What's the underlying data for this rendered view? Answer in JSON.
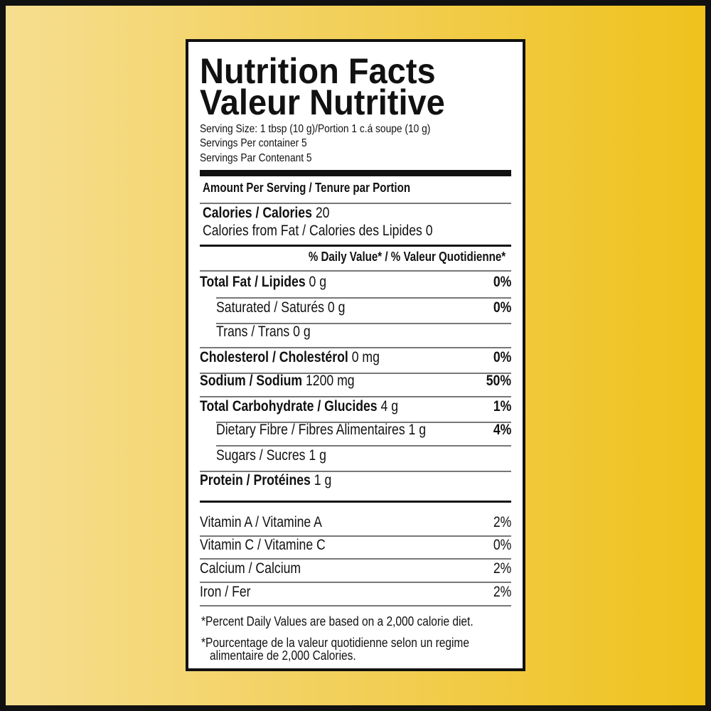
{
  "background_colors": [
    "#f6de90",
    "#efc21c"
  ],
  "title_en": "Nutrition Facts",
  "title_fr": "Valeur Nutritive",
  "serving_size": "Serving Size: 1 tbsp (10 g)/Portion 1 c.á soupe (10 g)",
  "servings_en": "Servings Per container 5",
  "servings_fr": "Servings Par Contenant 5",
  "amount_header": "Amount Per Serving / Tenure par Portion",
  "calories": {
    "label": "Calories / Calories",
    "value": "20"
  },
  "calories_fat": "Calories from Fat / Calories des Lipides 0",
  "dv_header": "% Daily Value* / % Valeur Quotidienne*",
  "nutrients": [
    {
      "label": "Total Fat / Lipides",
      "amount": "0 g",
      "dv": "0%"
    },
    {
      "label": "Saturated / Saturés 0 g",
      "amount": "",
      "dv": "0%"
    },
    {
      "label": "Trans / Trans 0 g",
      "amount": "",
      "dv": ""
    },
    {
      "label": "Cholesterol / Cholestérol",
      "amount": "0 mg",
      "dv": "0%"
    },
    {
      "label": "Sodium / Sodium",
      "amount": "1200 mg",
      "dv": "50%"
    },
    {
      "label": "Total Carbohydrate / Glucides",
      "amount": "4 g",
      "dv": "1%"
    },
    {
      "label": "Dietary Fibre / Fibres Alimentaires 1 g",
      "amount": "",
      "dv": "4%"
    },
    {
      "label": "Sugars / Sucres 1 g",
      "amount": "",
      "dv": ""
    },
    {
      "label": "Protein / Protéines",
      "amount": "1 g",
      "dv": ""
    }
  ],
  "vitamins": [
    {
      "label": "Vitamin A / Vitamine A",
      "dv": "2%"
    },
    {
      "label": "Vitamin C / Vitamine C",
      "dv": "0%"
    },
    {
      "label": "Calcium / Calcium",
      "dv": "2%"
    },
    {
      "label": "Iron / Fer",
      "dv": "2%"
    }
  ],
  "footnote_en": "*Percent Daily Values are based on a 2,000 calorie diet.",
  "footnote_fr_1": "*Pourcentage de la valeur quotidienne selon un regime",
  "footnote_fr_2": "alimentaire de 2,000 Calories."
}
